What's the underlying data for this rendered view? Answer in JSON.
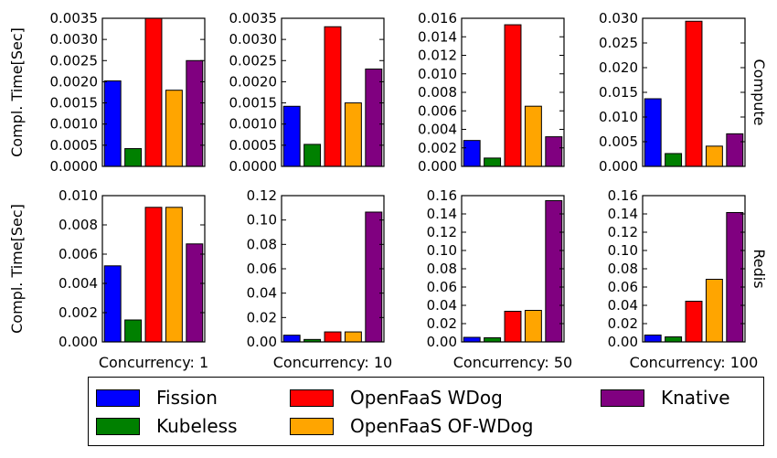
{
  "series": [
    {
      "name": "Fission",
      "color": "#0000ff"
    },
    {
      "name": "Kubeless",
      "color": "#008000"
    },
    {
      "name": "OpenFaaS WDog",
      "color": "#ff0000"
    },
    {
      "name": "OpenFaaS OF-WDog",
      "color": "#ffa500"
    },
    {
      "name": "Knative",
      "color": "#800080"
    }
  ],
  "row_labels": [
    "Compute",
    "Redis"
  ],
  "column_labels": [
    "Concurrency: 1",
    "Concurrency: 10",
    "Concurrency: 50",
    "Concurrency: 100"
  ],
  "ylabel": "Compl. Time[Sec]",
  "chart_data": [
    {
      "type": "bar",
      "row": "Compute",
      "column": "Concurrency: 1",
      "values": [
        0.00202,
        0.00042,
        0.0035,
        0.0018,
        0.0025
      ],
      "ylim": [
        0,
        0.0035
      ],
      "ticks": [
        "0.0000",
        "0.0005",
        "0.0010",
        "0.0015",
        "0.0020",
        "0.0025",
        "0.0030",
        "0.0035"
      ]
    },
    {
      "type": "bar",
      "row": "Compute",
      "column": "Concurrency: 10",
      "values": [
        0.00142,
        0.00052,
        0.0033,
        0.0015,
        0.0023
      ],
      "ylim": [
        0,
        0.0035
      ],
      "ticks": [
        "0.0000",
        "0.0005",
        "0.0010",
        "0.0015",
        "0.0020",
        "0.0025",
        "0.0030",
        "0.0035"
      ]
    },
    {
      "type": "bar",
      "row": "Compute",
      "column": "Concurrency: 50",
      "values": [
        0.0028,
        0.0009,
        0.0153,
        0.0065,
        0.0032
      ],
      "ylim": [
        0,
        0.016
      ],
      "ticks": [
        "0.000",
        "0.002",
        "0.004",
        "0.006",
        "0.008",
        "0.010",
        "0.012",
        "0.014",
        "0.016"
      ]
    },
    {
      "type": "bar",
      "row": "Compute",
      "column": "Concurrency: 100",
      "values": [
        0.0137,
        0.0026,
        0.0294,
        0.0041,
        0.0066
      ],
      "ylim": [
        0,
        0.03
      ],
      "ticks": [
        "0.000",
        "0.005",
        "0.010",
        "0.015",
        "0.020",
        "0.025",
        "0.030"
      ]
    },
    {
      "type": "bar",
      "row": "Redis",
      "column": "Concurrency: 1",
      "values": [
        0.0052,
        0.0015,
        0.0092,
        0.0092,
        0.0067
      ],
      "ylim": [
        0,
        0.01
      ],
      "ticks": [
        "0.000",
        "0.002",
        "0.004",
        "0.006",
        "0.008",
        "0.010"
      ]
    },
    {
      "type": "bar",
      "row": "Redis",
      "column": "Concurrency: 10",
      "values": [
        0.0055,
        0.002,
        0.0082,
        0.0082,
        0.1065
      ],
      "ylim": [
        0,
        0.12
      ],
      "ticks": [
        "0.00",
        "0.02",
        "0.04",
        "0.06",
        "0.08",
        "0.10",
        "0.12"
      ]
    },
    {
      "type": "bar",
      "row": "Redis",
      "column": "Concurrency: 50",
      "values": [
        0.005,
        0.0045,
        0.0335,
        0.0345,
        0.1545
      ],
      "ylim": [
        0,
        0.16
      ],
      "ticks": [
        "0.00",
        "0.02",
        "0.04",
        "0.06",
        "0.08",
        "0.10",
        "0.12",
        "0.14",
        "0.16"
      ]
    },
    {
      "type": "bar",
      "row": "Redis",
      "column": "Concurrency: 100",
      "values": [
        0.0075,
        0.0055,
        0.0445,
        0.0685,
        0.1415
      ],
      "ylim": [
        0,
        0.16
      ],
      "ticks": [
        "0.00",
        "0.02",
        "0.04",
        "0.06",
        "0.08",
        "0.10",
        "0.12",
        "0.14",
        "0.16"
      ]
    }
  ]
}
